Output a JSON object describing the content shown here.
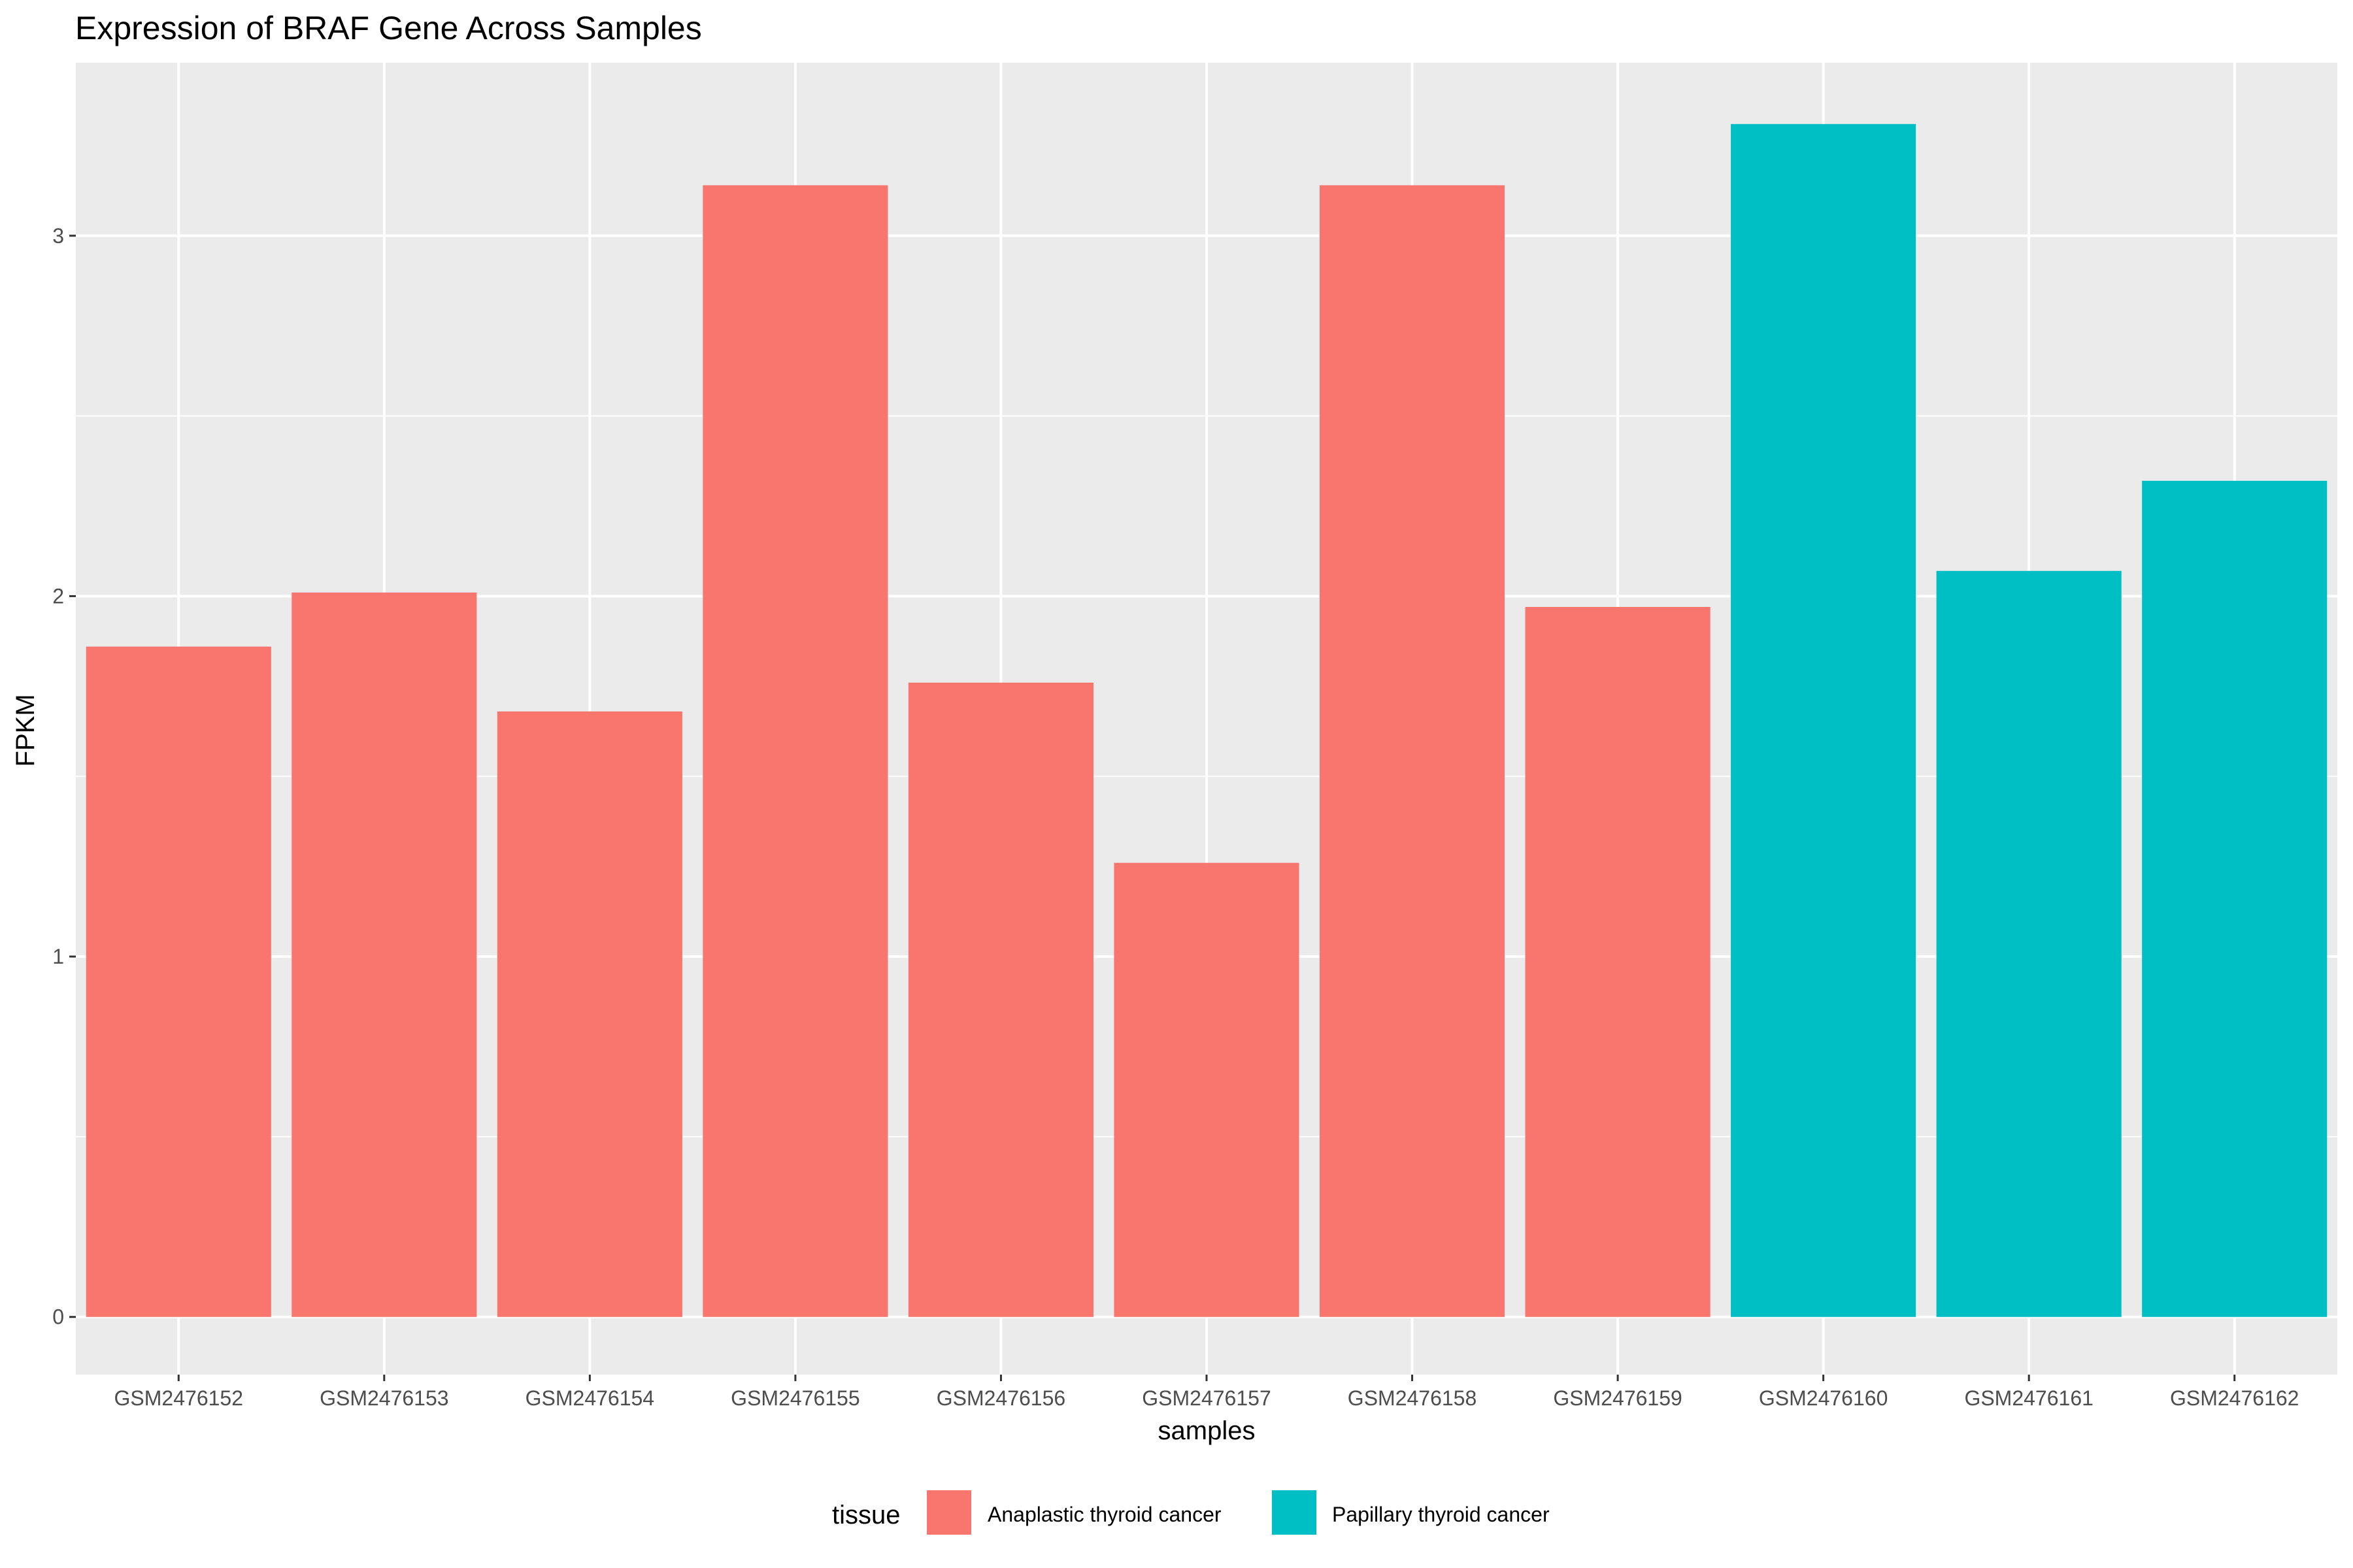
{
  "chart_data": {
    "type": "bar",
    "title": "Expression of BRAF Gene Across Samples",
    "xlabel": "samples",
    "ylabel": "FPKM",
    "ylim": [
      -0.16,
      3.48
    ],
    "yticks": [
      0,
      1,
      2,
      3
    ],
    "categories": [
      "GSM2476152",
      "GSM2476153",
      "GSM2476154",
      "GSM2476155",
      "GSM2476156",
      "GSM2476157",
      "GSM2476158",
      "GSM2476159",
      "GSM2476160",
      "GSM2476161",
      "GSM2476162"
    ],
    "values": [
      1.86,
      2.01,
      1.68,
      3.14,
      1.76,
      1.26,
      3.14,
      1.97,
      3.31,
      2.07,
      2.32
    ],
    "groups": [
      "Anaplastic thyroid cancer",
      "Anaplastic thyroid cancer",
      "Anaplastic thyroid cancer",
      "Anaplastic thyroid cancer",
      "Anaplastic thyroid cancer",
      "Anaplastic thyroid cancer",
      "Anaplastic thyroid cancer",
      "Anaplastic thyroid cancer",
      "Papillary thyroid cancer",
      "Papillary thyroid cancer",
      "Papillary thyroid cancer"
    ],
    "legend": {
      "title": "tissue",
      "position": "bottom",
      "entries": [
        {
          "label": "Anaplastic thyroid cancer",
          "color": "#F8766D"
        },
        {
          "label": "Papillary thyroid cancer",
          "color": "#00BFC4"
        }
      ]
    },
    "grid": true,
    "panel_background": "#EBEBEB"
  }
}
